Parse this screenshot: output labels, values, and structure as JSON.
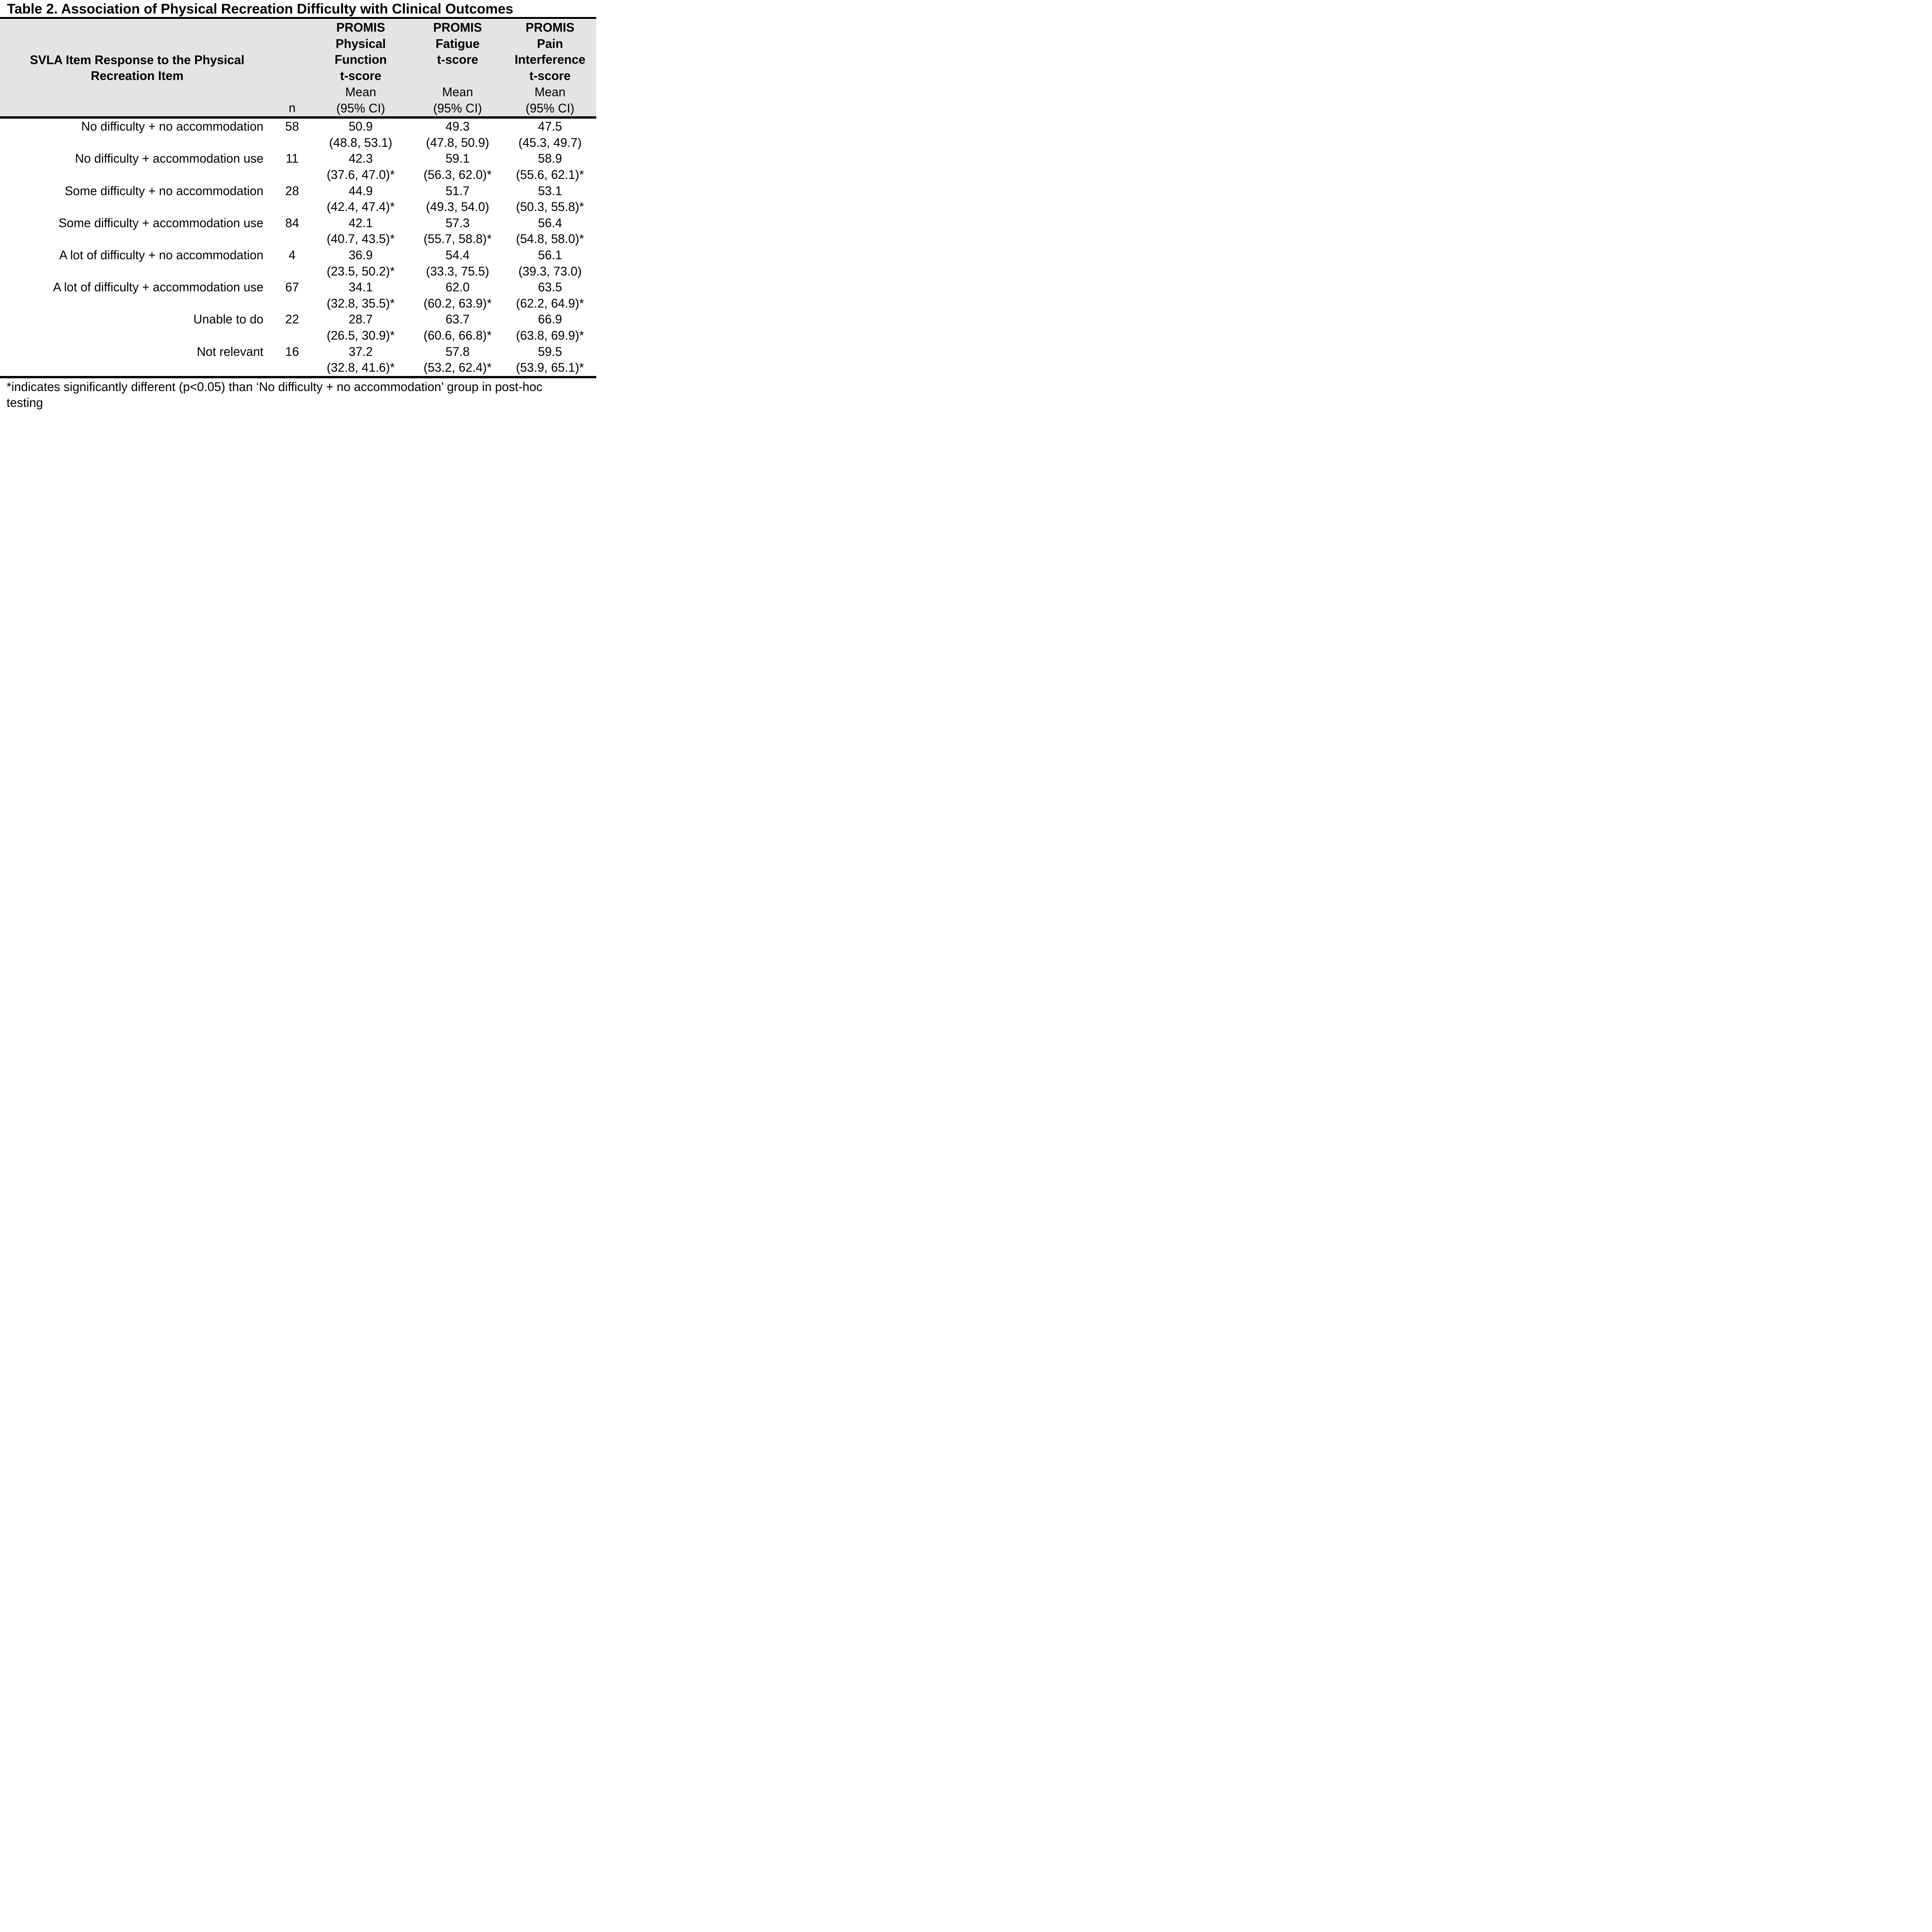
{
  "title": "Table 2. Association of Physical Recreation Difficulty with Clinical Outcomes",
  "colors": {
    "header_bg": "#e5e4e4",
    "rule": "#000000",
    "text": "#000000",
    "page_bg": "#ffffff"
  },
  "chart_data": {
    "type": "table",
    "title": "Table 2. Association of Physical Recreation Difficulty with Clinical Outcomes",
    "columns": [
      "SVLA Item Response to the Physical Recreation Item",
      "n",
      "PROMIS Physical Function t-score Mean (95% CI)",
      "PROMIS Fatigue t-score Mean (95% CI)",
      "PROMIS Pain Interference t-score Mean (95% CI)"
    ],
    "rows": [
      [
        "No difficulty + no accommodation",
        58,
        "50.9 (48.8, 53.1)",
        "49.3 (47.8, 50.9)",
        "47.5 (45.3, 49.7)"
      ],
      [
        "No difficulty + accommodation use",
        11,
        "42.3 (37.6, 47.0)*",
        "59.1 (56.3, 62.0)*",
        "58.9 (55.6, 62.1)*"
      ],
      [
        "Some difficulty + no accommodation",
        28,
        "44.9 (42.4, 47.4)*",
        "51.7 (49.3, 54.0)",
        "53.1 (50.3, 55.8)*"
      ],
      [
        "Some difficulty + accommodation use",
        84,
        "42.1 (40.7, 43.5)*",
        "57.3 (55.7, 58.8)*",
        "56.4 (54.8, 58.0)*"
      ],
      [
        "A lot of difficulty + no accommodation",
        4,
        "36.9 (23.5, 50.2)*",
        "54.4 (33.3, 75.5)",
        "56.1 (39.3, 73.0)"
      ],
      [
        "A lot of difficulty + accommodation use",
        67,
        "34.1 (32.8, 35.5)*",
        "62.0 (60.2, 63.9)*",
        "63.5 (62.2, 64.9)*"
      ],
      [
        "Unable to do",
        22,
        "28.7 (26.5, 30.9)*",
        "63.7 (60.6, 66.8)*",
        "66.9 (63.8, 69.9)*"
      ],
      [
        "Not relevant",
        16,
        "37.2 (32.8, 41.6)*",
        "57.8 (53.2, 62.4)*",
        "59.5 (53.9, 65.1)*"
      ]
    ]
  },
  "header": {
    "item": "SVLA Item Response to the Physical Recreation Item",
    "n": "n",
    "outcomes": [
      {
        "lines": [
          "PROMIS",
          "Physical",
          "Function",
          "t-score"
        ],
        "stat1": "Mean",
        "stat2": "(95% CI)"
      },
      {
        "lines": [
          "PROMIS",
          "Fatigue",
          "t-score",
          ""
        ],
        "stat1": "Mean",
        "stat2": "(95% CI)"
      },
      {
        "lines": [
          "PROMIS",
          "Pain",
          "Interference",
          "t-score"
        ],
        "stat1": "Mean",
        "stat2": "(95% CI)"
      }
    ]
  },
  "rows": [
    {
      "label": "No difficulty + no accommodation",
      "n": "58",
      "pf": {
        "mean": "50.9",
        "ci": "(48.8, 53.1)"
      },
      "fatigue": {
        "mean": "49.3",
        "ci": "(47.8, 50.9)"
      },
      "pain": {
        "mean": "47.5",
        "ci": "(45.3, 49.7)"
      }
    },
    {
      "label": "No difficulty + accommodation use",
      "n": "11",
      "pf": {
        "mean": "42.3",
        "ci": "(37.6, 47.0)*"
      },
      "fatigue": {
        "mean": "59.1",
        "ci": "(56.3, 62.0)*"
      },
      "pain": {
        "mean": "58.9",
        "ci": "(55.6, 62.1)*"
      }
    },
    {
      "label": "Some difficulty + no accommodation",
      "n": "28",
      "pf": {
        "mean": "44.9",
        "ci": "(42.4, 47.4)*"
      },
      "fatigue": {
        "mean": "51.7",
        "ci": "(49.3, 54.0)"
      },
      "pain": {
        "mean": "53.1",
        "ci": "(50.3, 55.8)*"
      }
    },
    {
      "label": "Some difficulty + accommodation use",
      "n": "84",
      "pf": {
        "mean": "42.1",
        "ci": "(40.7, 43.5)*"
      },
      "fatigue": {
        "mean": "57.3",
        "ci": "(55.7, 58.8)*"
      },
      "pain": {
        "mean": "56.4",
        "ci": "(54.8, 58.0)*"
      }
    },
    {
      "label": "A lot of difficulty + no accommodation",
      "n": "4",
      "pf": {
        "mean": "36.9",
        "ci": "(23.5, 50.2)*"
      },
      "fatigue": {
        "mean": "54.4",
        "ci": "(33.3, 75.5)"
      },
      "pain": {
        "mean": "56.1",
        "ci": "(39.3, 73.0)"
      }
    },
    {
      "label": "A lot of difficulty + accommodation use",
      "n": "67",
      "pf": {
        "mean": "34.1",
        "ci": "(32.8, 35.5)*"
      },
      "fatigue": {
        "mean": "62.0",
        "ci": "(60.2, 63.9)*"
      },
      "pain": {
        "mean": "63.5",
        "ci": "(62.2, 64.9)*"
      }
    },
    {
      "label": "Unable to do",
      "n": "22",
      "pf": {
        "mean": "28.7",
        "ci": "(26.5, 30.9)*"
      },
      "fatigue": {
        "mean": "63.7",
        "ci": "(60.6, 66.8)*"
      },
      "pain": {
        "mean": "66.9",
        "ci": "(63.8, 69.9)*"
      }
    },
    {
      "label": "Not relevant",
      "n": "16",
      "pf": {
        "mean": "37.2",
        "ci": "(32.8, 41.6)*"
      },
      "fatigue": {
        "mean": "57.8",
        "ci": "(53.2, 62.4)*"
      },
      "pain": {
        "mean": "59.5",
        "ci": "(53.9, 65.1)*"
      }
    }
  ],
  "footnote": {
    "line1": "*indicates significantly different (p<0.05) than ‘No difficulty + no accommodation’ group in post-hoc",
    "line2": "testing"
  }
}
